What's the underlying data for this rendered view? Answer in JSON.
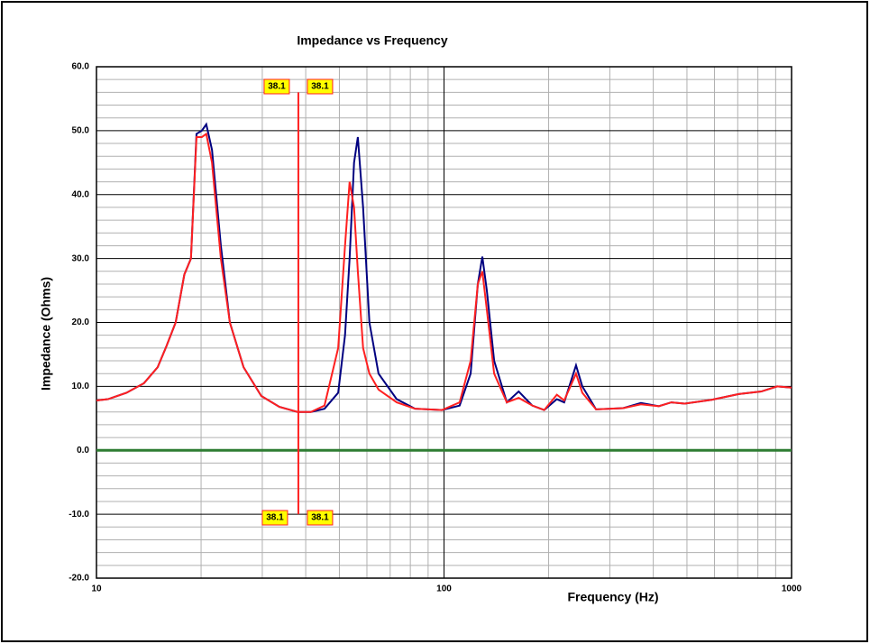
{
  "chart_data": {
    "type": "line",
    "title": "Impedance vs Frequency",
    "x_label": "Frequency (Hz)",
    "y_label": "Impedance (Ohms)",
    "log_x": true,
    "grid": true,
    "xlim": [
      10,
      1000
    ],
    "xticks": [
      10,
      100,
      1000
    ],
    "xminor_ticks": [
      20,
      30,
      40,
      50,
      60,
      70,
      80,
      90,
      200,
      300,
      400,
      500,
      600,
      700,
      800,
      900
    ],
    "ylim": [
      -20,
      60
    ],
    "yticks": [
      {
        "value": -20,
        "label": "-20.0"
      },
      {
        "value": -10,
        "label": "-10.0"
      },
      {
        "value": 0,
        "label": "0.0"
      },
      {
        "value": 10,
        "label": "10.0"
      },
      {
        "value": 20,
        "label": "20.0"
      },
      {
        "value": 30,
        "label": "30.0"
      },
      {
        "value": 40,
        "label": "40.0"
      },
      {
        "value": 50,
        "label": "50.0"
      },
      {
        "value": 60,
        "label": "60.0"
      }
    ],
    "yminor_ticks": [
      -18,
      -16,
      -14,
      -12,
      -8,
      -6,
      -4,
      -2,
      2,
      4,
      6,
      8,
      12,
      14,
      16,
      18,
      22,
      24,
      26,
      28,
      32,
      34,
      36,
      38,
      42,
      44,
      46,
      48,
      52,
      54,
      56,
      58
    ],
    "cursor": {
      "x": 38.1,
      "y": [
        -10,
        56
      ]
    },
    "cursor_color": "#ff2020",
    "x": [
      10,
      10.8,
      12.2,
      13.7,
      15,
      15.9,
      16.9,
      17.9,
      18.7,
      19.4,
      20.1,
      20.7,
      21.5,
      22.8,
      24.2,
      26.5,
      29.8,
      33.6,
      37.9,
      41.4,
      45.3,
      49.6,
      51.9,
      53.5,
      55.1,
      56.5,
      58.5,
      61,
      64.8,
      73.1,
      82.5,
      98.7,
      110.9,
      119.3,
      125.1,
      128.9,
      132.8,
      139.4,
      151.6,
      164,
      179.5,
      194.2,
      211.2,
      221.7,
      239.8,
      250,
      273.8,
      327.8,
      368.5,
      415,
      450.9,
      493,
      589,
      705,
      818,
      909,
      1000
    ],
    "series": [
      {
        "color": "#000080",
        "values": [
          7.8,
          8,
          9,
          10.5,
          13,
          16.3,
          20,
          27.5,
          30,
          49.5,
          50,
          51,
          47,
          32,
          20,
          13,
          8.5,
          6.8,
          6,
          6,
          6.5,
          9,
          18,
          30,
          45,
          49,
          38,
          20,
          12,
          8,
          6.5,
          6.3,
          7,
          12,
          26,
          30.3,
          25,
          14,
          7.5,
          9.2,
          7,
          6.3,
          8,
          7.5,
          13.3,
          10,
          6.4,
          6.6,
          7.4,
          6.9,
          7.5,
          7.3,
          7.9,
          8.8,
          9.2,
          10,
          9.8
        ]
      },
      {
        "color": "#ff2020",
        "values": [
          7.8,
          8,
          9,
          10.5,
          13,
          16.3,
          20,
          27.5,
          30,
          49,
          49,
          49.5,
          45,
          30,
          20,
          13,
          8.5,
          6.8,
          6,
          6,
          7,
          16,
          32,
          42,
          38,
          28,
          16,
          12,
          9.5,
          7.5,
          6.5,
          6.3,
          7.5,
          14,
          26,
          28,
          22,
          12,
          7.5,
          8.2,
          7,
          6.3,
          8.7,
          7.8,
          12,
          9,
          6.4,
          6.6,
          7.2,
          6.9,
          7.5,
          7.3,
          7.9,
          8.8,
          9.2,
          10,
          9.8
        ]
      },
      {
        "color": "#2e7d32",
        "values": [
          0,
          0,
          0,
          0,
          0,
          0,
          0,
          0,
          0,
          0,
          0,
          0,
          0,
          0,
          0,
          0,
          0,
          0,
          0,
          0,
          0,
          0,
          0,
          0,
          0,
          0,
          0,
          0,
          0,
          0,
          0,
          0,
          0,
          0,
          0,
          0,
          0,
          0,
          0,
          0,
          0,
          0,
          0,
          0,
          0,
          0,
          0,
          0,
          0,
          0,
          0,
          0,
          0,
          0,
          0,
          0,
          0
        ]
      }
    ]
  }
}
